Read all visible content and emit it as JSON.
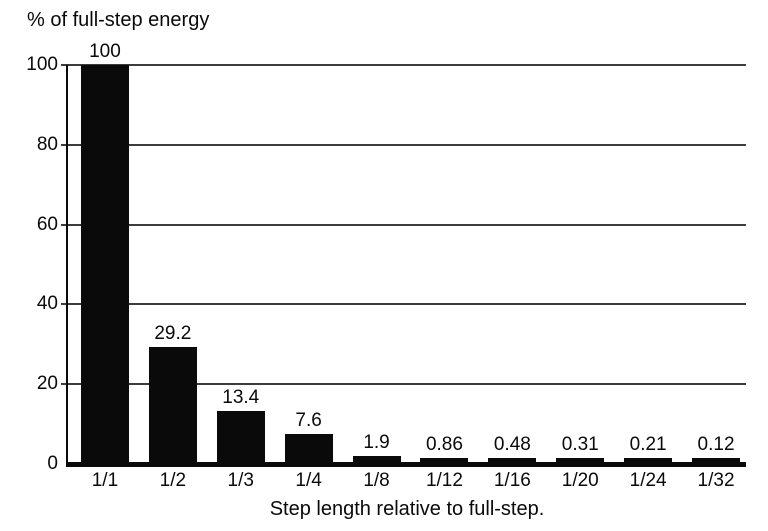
{
  "title": "% of full-step energy",
  "x_axis_title": "Step length relative to full-step.",
  "chart_data": {
    "type": "bar",
    "title": "% of full-step energy",
    "xlabel": "Step length relative to full-step.",
    "ylabel": "% of full-step energy",
    "categories": [
      "1/1",
      "1/2",
      "1/3",
      "1/4",
      "1/8",
      "1/12",
      "1/16",
      "1/20",
      "1/24",
      "1/32"
    ],
    "values": [
      100,
      29.2,
      13.4,
      7.6,
      1.9,
      0.86,
      0.48,
      0.31,
      0.21,
      0.12
    ],
    "bar_labels": [
      "100",
      "29.2",
      "13.4",
      "7.6",
      "1.9",
      "0.86",
      "0.48",
      "0.31",
      "0.21",
      "0.12"
    ],
    "ylim": [
      0,
      100
    ],
    "yticks": [
      0,
      20,
      40,
      60,
      80,
      100
    ],
    "grid": true,
    "legend": "none",
    "bar_color": "#0a0a0a",
    "gridline_color": "#3c3c3c",
    "background_color": "#ffffff"
  }
}
